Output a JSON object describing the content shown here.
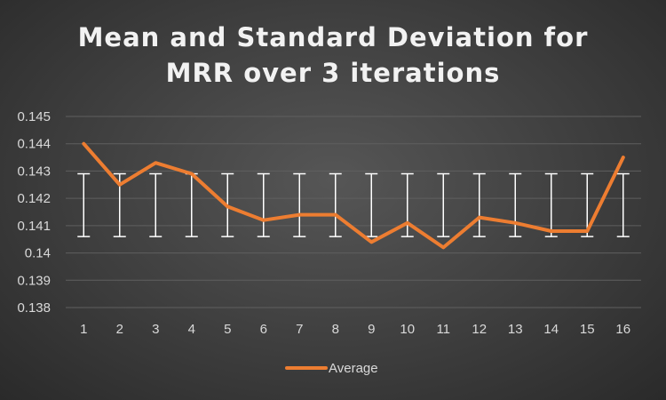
{
  "chart_data": {
    "type": "line",
    "title_lines": [
      "Mean and Standard Deviation for",
      "MRR over 3 iterations"
    ],
    "xlabel": "",
    "ylabel": "",
    "categories": [
      "1",
      "2",
      "3",
      "4",
      "5",
      "6",
      "7",
      "8",
      "9",
      "10",
      "11",
      "12",
      "13",
      "14",
      "15",
      "16"
    ],
    "ylim": [
      0.138,
      0.145
    ],
    "y_ticks": [
      "0.138",
      "0.139",
      "0.14",
      "0.141",
      "0.142",
      "0.143",
      "0.144",
      "0.145"
    ],
    "grid": true,
    "legend_position": "bottom",
    "series": [
      {
        "name": "Average",
        "color": "#ed7d31",
        "values": [
          0.144,
          0.1425,
          0.1433,
          0.1429,
          0.1417,
          0.1412,
          0.1414,
          0.1414,
          0.1404,
          0.1411,
          0.1402,
          0.1413,
          0.1411,
          0.1408,
          0.1408,
          0.1435
        ]
      }
    ],
    "error_bars": {
      "color": "#ffffff",
      "upper": [
        0.1429,
        0.1429,
        0.1429,
        0.1429,
        0.1429,
        0.1429,
        0.1429,
        0.1429,
        0.1429,
        0.1429,
        0.1429,
        0.1429,
        0.1429,
        0.1429,
        0.1429,
        0.1429
      ],
      "lower": [
        0.1406,
        0.1406,
        0.1406,
        0.1406,
        0.1406,
        0.1406,
        0.1406,
        0.1406,
        0.1406,
        0.1406,
        0.1406,
        0.1406,
        0.1406,
        0.1406,
        0.1406,
        0.1406
      ]
    }
  }
}
